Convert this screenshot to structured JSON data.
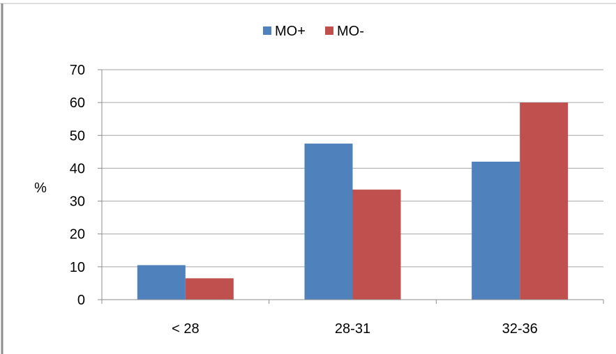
{
  "chart_data": {
    "type": "bar",
    "categories": [
      "< 28",
      "28-31",
      "32-36"
    ],
    "series": [
      {
        "name": "MO+",
        "values": [
          10.5,
          47.5,
          42
        ],
        "color": "#4F81BD"
      },
      {
        "name": "MO-",
        "values": [
          6.5,
          33.5,
          60
        ],
        "color": "#C0504D"
      }
    ],
    "title": "",
    "xlabel": "",
    "ylabel": "%",
    "ylim": [
      0,
      70
    ],
    "yticks": [
      "0",
      "10",
      "20",
      "30",
      "40",
      "50",
      "60",
      "70"
    ],
    "grid": true,
    "legend_position": "top"
  }
}
